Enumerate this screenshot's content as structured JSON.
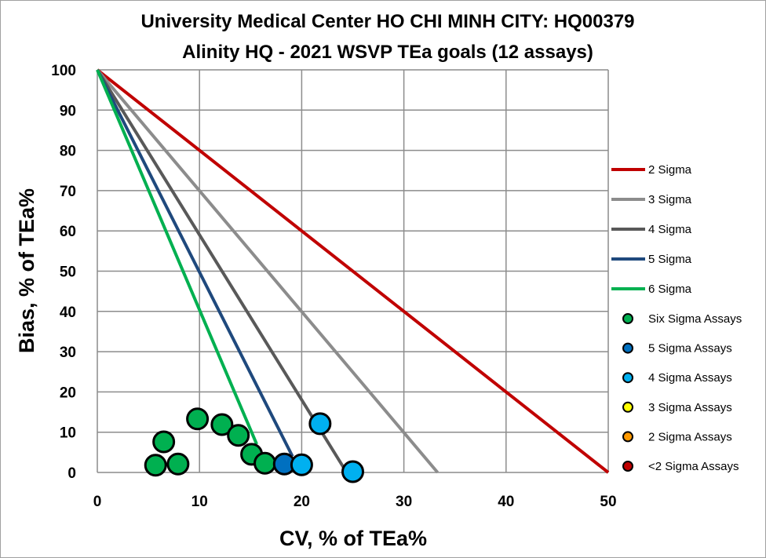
{
  "chart_data": {
    "type": "scatter",
    "title": "University Medical Center HO CHI MINH CITY: HQ00379",
    "subtitle": "Alinity HQ - 2021 WSVP TEa goals (12 assays)",
    "xlabel": "CV, % of TEa%",
    "ylabel": "Bias, % of TEa%",
    "xlim": [
      0,
      50
    ],
    "ylim": [
      0,
      100
    ],
    "xticks": [
      0,
      10,
      20,
      30,
      40,
      50
    ],
    "yticks": [
      0,
      10,
      20,
      30,
      40,
      50,
      60,
      70,
      80,
      90,
      100
    ],
    "grid": true,
    "legend_position": "right",
    "lines": [
      {
        "name": "2 Sigma",
        "color": "#c00000",
        "points": [
          [
            0,
            100
          ],
          [
            50,
            0
          ]
        ]
      },
      {
        "name": "3 Sigma",
        "color": "#8c8c8c",
        "points": [
          [
            0,
            100
          ],
          [
            33.3,
            0
          ]
        ]
      },
      {
        "name": "4 Sigma",
        "color": "#595959",
        "points": [
          [
            0,
            100
          ],
          [
            24.4,
            0
          ]
        ]
      },
      {
        "name": "5 Sigma",
        "color": "#1f497d",
        "points": [
          [
            0,
            100
          ],
          [
            19.1,
            4
          ]
        ]
      },
      {
        "name": "6 Sigma",
        "color": "#00b050",
        "points": [
          [
            0,
            100
          ],
          [
            15.6,
            7
          ]
        ]
      }
    ],
    "series": [
      {
        "name": "Six Sigma Assays",
        "color": "#00b050",
        "points": [
          [
            5.7,
            1.8
          ],
          [
            6.5,
            7.6
          ],
          [
            7.9,
            2.1
          ],
          [
            9.8,
            13.3
          ],
          [
            12.2,
            11.9
          ],
          [
            13.8,
            9.2
          ],
          [
            15.1,
            4.5
          ],
          [
            16.4,
            2.3
          ]
        ]
      },
      {
        "name": "5 Sigma Assays",
        "color": "#0070c0",
        "points": [
          [
            18.3,
            2.1
          ]
        ]
      },
      {
        "name": "4 Sigma Assays",
        "color": "#00b0f0",
        "points": [
          [
            21.8,
            12.1
          ],
          [
            20.0,
            1.9
          ],
          [
            25.0,
            0.2
          ]
        ]
      },
      {
        "name": "3 Sigma Assays",
        "color": "#ffff00",
        "points": []
      },
      {
        "name": "2 Sigma Assays",
        "color": "#ff9900",
        "points": []
      },
      {
        "name": "<2 Sigma Assays",
        "color": "#c00000",
        "points": []
      }
    ]
  }
}
